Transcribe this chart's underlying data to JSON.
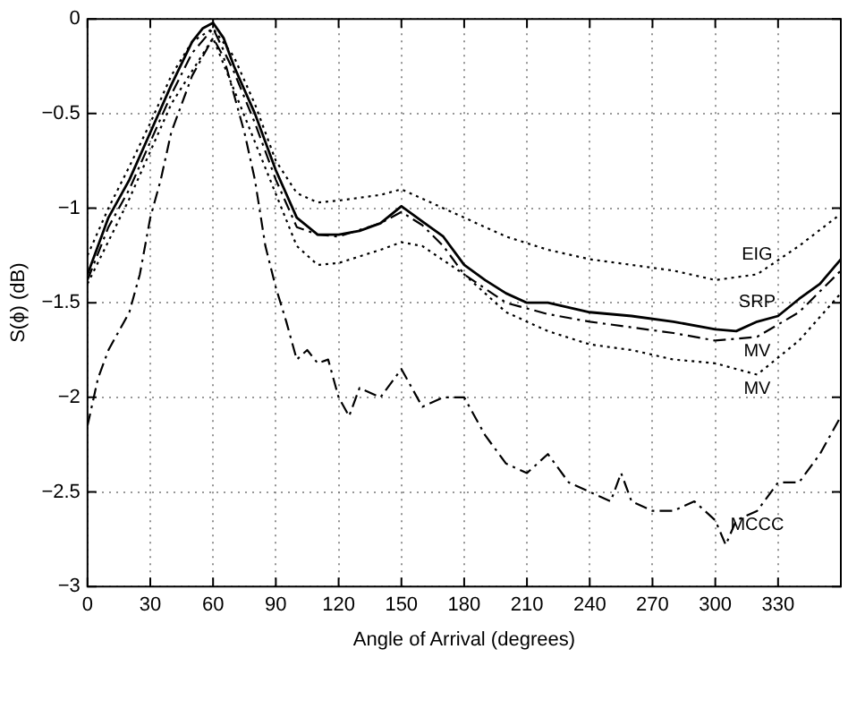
{
  "chart_data": {
    "type": "line",
    "xlabel": "Angle of Arrival (degrees)",
    "ylabel": "S(ϕ) (dB)",
    "xlim": [
      0,
      360
    ],
    "xticks": [
      0,
      30,
      60,
      90,
      120,
      150,
      180,
      210,
      240,
      270,
      300,
      330
    ],
    "ylim": [
      -3,
      0
    ],
    "yticks": [
      -3,
      -2.5,
      -2,
      -1.5,
      -1,
      -0.5,
      0
    ],
    "grid": true,
    "legend": false,
    "marker": "none",
    "series": [
      {
        "name": "EIG",
        "color": "#000000",
        "line_style": "dotted",
        "x": [
          0,
          10,
          20,
          30,
          40,
          50,
          60,
          70,
          80,
          90,
          100,
          110,
          120,
          140,
          150,
          160,
          180,
          200,
          220,
          240,
          260,
          280,
          300,
          320,
          340,
          360
        ],
        "values": [
          -1.25,
          -1.0,
          -0.78,
          -0.55,
          -0.3,
          -0.12,
          -0.05,
          -0.2,
          -0.45,
          -0.75,
          -0.92,
          -0.97,
          -0.96,
          -0.93,
          -0.9,
          -0.95,
          -1.05,
          -1.15,
          -1.22,
          -1.27,
          -1.3,
          -1.33,
          -1.38,
          -1.35,
          -1.2,
          -1.03
        ]
      },
      {
        "name": "SRP",
        "color": "#000000",
        "line_style": "solid",
        "x": [
          0,
          10,
          20,
          30,
          40,
          50,
          55,
          60,
          65,
          70,
          80,
          90,
          100,
          110,
          120,
          130,
          140,
          150,
          160,
          170,
          180,
          190,
          200,
          210,
          220,
          240,
          260,
          280,
          300,
          310,
          320,
          330,
          340,
          350,
          360
        ],
        "values": [
          -1.35,
          -1.05,
          -0.85,
          -0.6,
          -0.35,
          -0.12,
          -0.05,
          -0.02,
          -0.1,
          -0.25,
          -0.5,
          -0.8,
          -1.05,
          -1.14,
          -1.14,
          -1.12,
          -1.08,
          -0.99,
          -1.07,
          -1.15,
          -1.3,
          -1.38,
          -1.45,
          -1.5,
          -1.5,
          -1.55,
          -1.57,
          -1.6,
          -1.64,
          -1.65,
          -1.6,
          -1.57,
          -1.48,
          -1.4,
          -1.27
        ]
      },
      {
        "name": "MV",
        "color": "#000000",
        "line_style": "dashed",
        "x": [
          0,
          10,
          20,
          30,
          40,
          50,
          60,
          70,
          80,
          90,
          100,
          110,
          120,
          140,
          150,
          160,
          170,
          180,
          200,
          220,
          240,
          260,
          280,
          300,
          320,
          340,
          360
        ],
        "values": [
          -1.38,
          -1.1,
          -0.9,
          -0.65,
          -0.4,
          -0.18,
          -0.05,
          -0.28,
          -0.55,
          -0.85,
          -1.1,
          -1.14,
          -1.15,
          -1.08,
          -1.02,
          -1.09,
          -1.2,
          -1.35,
          -1.5,
          -1.56,
          -1.6,
          -1.63,
          -1.66,
          -1.7,
          -1.68,
          -1.55,
          -1.33
        ]
      },
      {
        "name": "MV",
        "color": "#000000",
        "line_style": "dotted",
        "x": [
          0,
          20,
          40,
          60,
          80,
          100,
          110,
          120,
          140,
          150,
          160,
          180,
          200,
          220,
          240,
          260,
          280,
          300,
          320,
          340,
          360
        ],
        "values": [
          -1.4,
          -0.95,
          -0.45,
          -0.1,
          -0.65,
          -1.2,
          -1.3,
          -1.29,
          -1.22,
          -1.18,
          -1.2,
          -1.35,
          -1.55,
          -1.65,
          -1.72,
          -1.75,
          -1.8,
          -1.82,
          -1.88,
          -1.7,
          -1.45
        ]
      },
      {
        "name": "MCCC",
        "color": "#000000",
        "line_style": "dashed",
        "x": [
          0,
          5,
          10,
          20,
          25,
          30,
          35,
          40,
          45,
          50,
          55,
          60,
          65,
          70,
          75,
          80,
          85,
          90,
          95,
          100,
          105,
          110,
          115,
          120,
          125,
          130,
          140,
          150,
          160,
          170,
          180,
          190,
          200,
          210,
          220,
          230,
          240,
          250,
          255,
          260,
          270,
          280,
          290,
          300,
          305,
          310,
          320,
          330,
          340,
          350,
          360
        ],
        "values": [
          -2.15,
          -1.9,
          -1.75,
          -1.55,
          -1.35,
          -1.05,
          -0.85,
          -0.6,
          -0.45,
          -0.3,
          -0.2,
          -0.1,
          -0.2,
          -0.4,
          -0.6,
          -0.85,
          -1.2,
          -1.42,
          -1.6,
          -1.8,
          -1.75,
          -1.82,
          -1.8,
          -2.0,
          -2.1,
          -1.95,
          -2.0,
          -1.85,
          -2.05,
          -2.0,
          -2.0,
          -2.2,
          -2.35,
          -2.4,
          -2.3,
          -2.45,
          -2.5,
          -2.55,
          -2.4,
          -2.55,
          -2.6,
          -2.6,
          -2.55,
          -2.65,
          -2.78,
          -2.65,
          -2.6,
          -2.45,
          -2.45,
          -2.3,
          -2.1
        ]
      }
    ]
  }
}
